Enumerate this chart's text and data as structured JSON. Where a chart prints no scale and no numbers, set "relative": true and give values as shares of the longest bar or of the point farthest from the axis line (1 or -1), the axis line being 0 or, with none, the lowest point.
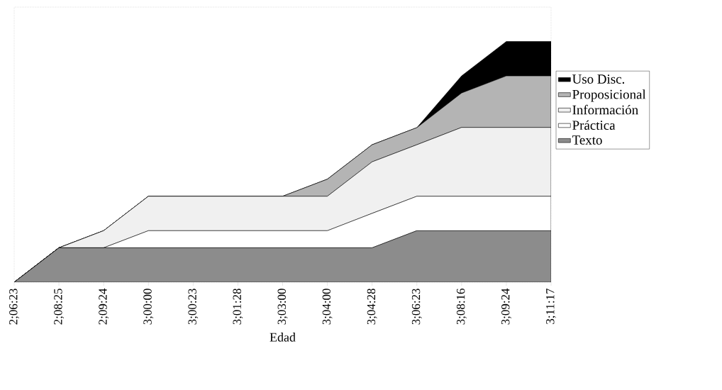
{
  "chart_data": {
    "type": "area",
    "stacked": true,
    "relative": true,
    "xlabel": "Edad",
    "legend": "right",
    "categories": [
      "2;06:23",
      "2;08:25",
      "2;09:24",
      "3;00:00",
      "3;00:23",
      "3;01:28",
      "3;03:00",
      "3;04:00",
      "3;04:28",
      "3;06:23",
      "3;08:16",
      "3;09:24",
      "3;11:17"
    ],
    "series": [
      {
        "name": "Texto",
        "color": "#8c8c8c",
        "values": [
          0,
          0.143,
          0.143,
          0.143,
          0.143,
          0.143,
          0.143,
          0.143,
          0.143,
          0.214,
          0.214,
          0.214,
          0.214
        ]
      },
      {
        "name": "Práctica",
        "color": "#ffffff",
        "values": [
          0,
          0,
          0,
          0.071,
          0.071,
          0.071,
          0.071,
          0.071,
          0.143,
          0.143,
          0.143,
          0.143,
          0.143
        ]
      },
      {
        "name": "Información",
        "color": "#f0f0f0",
        "values": [
          0,
          0,
          0.071,
          0.143,
          0.143,
          0.143,
          0.143,
          0.143,
          0.214,
          0.214,
          0.286,
          0.286,
          0.286
        ]
      },
      {
        "name": "Proposicional",
        "color": "#b4b4b4",
        "values": [
          0,
          0,
          0,
          0,
          0,
          0,
          0,
          0.071,
          0.071,
          0.071,
          0.143,
          0.214,
          0.214
        ]
      },
      {
        "name": "Uso Disc.",
        "color": "#000000",
        "values": [
          0,
          0,
          0,
          0,
          0,
          0,
          0,
          0,
          0,
          0,
          0.071,
          0.143,
          0.143
        ]
      }
    ]
  }
}
